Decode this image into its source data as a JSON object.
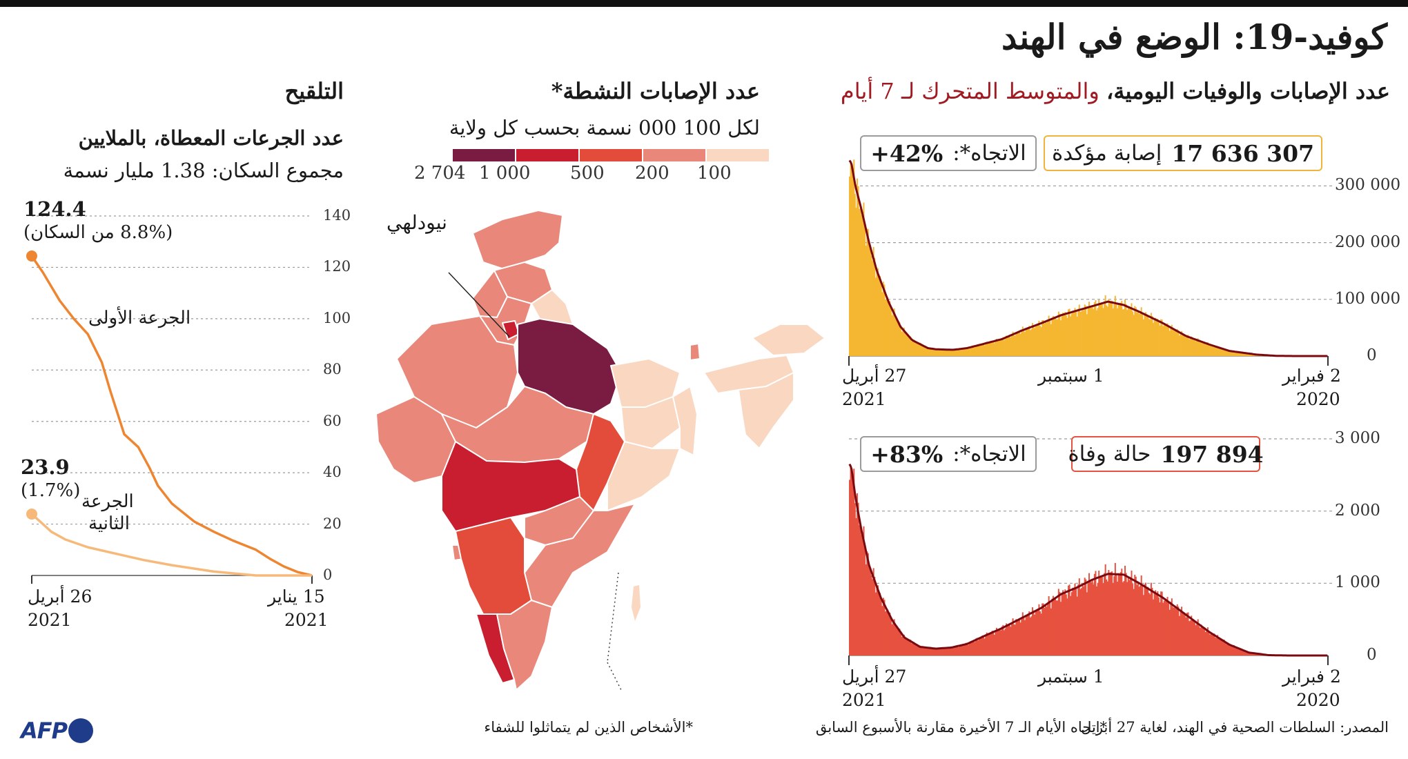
{
  "title": "كوفيد-19: الوضع في الهند",
  "colors": {
    "cases": "#f5b731",
    "deaths": "#e6523f",
    "avg": "#7a0a10",
    "dose1": "#ee8530",
    "dose2": "#f7b97a",
    "pos": "#c81e2f"
  },
  "daily": {
    "heading": "عدد الإصابات والوفيات اليومية،",
    "heading_avg": " والمتوسط المتحرك لـ 7 أيام",
    "cases_total": "17 636 307",
    "cases_label": "إصابة مؤكدة",
    "cases_trend_label": "الاتجاه*:",
    "cases_trend": "+42%",
    "deaths_total": "197 894",
    "deaths_label": "حالة وفاة",
    "deaths_trend_label": "الاتجاه*:",
    "deaths_trend": "+83%",
    "x_left": "27 أبريل",
    "x_left_year": "2021",
    "x_mid": "1 سبتمبر",
    "x_right": "2 فبراير",
    "x_right_year": "2020"
  },
  "map": {
    "heading": "عدد الإصابات النشطة*",
    "sub": "لكل 100 000 نسمة بحسب كل ولاية",
    "legend": [
      "2 704",
      "1 000",
      "500",
      "200",
      "100"
    ],
    "legend_colors": [
      "#7a1b42",
      "#c81e2f",
      "#e34b3a",
      "#e8877a",
      "#fad7c0"
    ],
    "label_delhi": "نيودلهي",
    "footnote": "*الأشخاص الذين لم يتماثلوا للشفاء"
  },
  "vacc": {
    "heading": "التلقيح",
    "sub1": "عدد الجرعات المعطاة، بالملايين",
    "sub2": "مجموع السكان: 1.38 مليار نسمة",
    "dose1_value": "124.4",
    "dose1_pct": "(8.8% من السكان)",
    "dose1_label": "الجرعة الأولى",
    "dose2_value": "23.9",
    "dose2_pct": "(1.7%)",
    "dose2_label_a": "الجرعة",
    "dose2_label_b": "الثانية",
    "x_left": "26 أبريل",
    "x_left_year": "2021",
    "x_right": "15 يناير",
    "x_right_year": "2021"
  },
  "source": "المصدر: السلطات الصحية في الهند، لغاية 27 أبريل",
  "trend_note": "*اتجاه الأيام الـ 7 الأخيرة مقارنة بالأسبوع السابق",
  "brand": "AFP",
  "chart_data": [
    {
      "type": "bar",
      "title": "عدد الإصابات والوفيات اليومية",
      "series_label": "إصابة مؤكدة",
      "x_order": "right-to-left",
      "x": [
        "2 فبراير 2020",
        "1 سبتمبر",
        "27 أبريل 2021"
      ],
      "y_ticks": [
        0,
        100000,
        200000,
        300000
      ],
      "ylim": [
        0,
        320000
      ],
      "knots": [
        [
          0,
          0
        ],
        [
          0.08,
          0
        ],
        [
          0.13,
          300
        ],
        [
          0.18,
          2500
        ],
        [
          0.25,
          9000
        ],
        [
          0.3,
          20000
        ],
        [
          0.36,
          35000
        ],
        [
          0.42,
          58000
        ],
        [
          0.48,
          78000
        ],
        [
          0.52,
          90000
        ],
        [
          0.56,
          96000
        ],
        [
          0.6,
          88000
        ],
        [
          0.64,
          80000
        ],
        [
          0.68,
          72000
        ],
        [
          0.73,
          58000
        ],
        [
          0.78,
          45000
        ],
        [
          0.83,
          30000
        ],
        [
          0.88,
          21000
        ],
        [
          0.92,
          14000
        ],
        [
          0.955,
          11000
        ],
        [
          0.98,
          11500
        ],
        [
          1,
          12000
        ],
        [
          1.02,
          14000
        ],
        [
          1.06,
          28000
        ],
        [
          1.09,
          52000
        ],
        [
          1.12,
          95000
        ],
        [
          1.15,
          150000
        ],
        [
          1.17,
          200000
        ],
        [
          1.19,
          260000
        ],
        [
          1.205,
          300000
        ],
        [
          1.215,
          340000
        ],
        [
          1.22,
          345000
        ]
      ]
    },
    {
      "type": "bar",
      "series_label": "حالة وفاة",
      "x_order": "right-to-left",
      "y_ticks": [
        0,
        1000,
        2000,
        3000
      ],
      "ylim": [
        0,
        3000
      ],
      "knots": [
        [
          0,
          0
        ],
        [
          0.1,
          0
        ],
        [
          0.15,
          5
        ],
        [
          0.2,
          40
        ],
        [
          0.25,
          150
        ],
        [
          0.3,
          320
        ],
        [
          0.36,
          560
        ],
        [
          0.42,
          800
        ],
        [
          0.48,
          1000
        ],
        [
          0.52,
          1120
        ],
        [
          0.56,
          1130
        ],
        [
          0.6,
          1050
        ],
        [
          0.64,
          940
        ],
        [
          0.68,
          850
        ],
        [
          0.73,
          660
        ],
        [
          0.78,
          520
        ],
        [
          0.83,
          380
        ],
        [
          0.88,
          260
        ],
        [
          0.92,
          160
        ],
        [
          0.96,
          110
        ],
        [
          1,
          95
        ],
        [
          1.04,
          120
        ],
        [
          1.08,
          250
        ],
        [
          1.11,
          480
        ],
        [
          1.14,
          800
        ],
        [
          1.17,
          1250
        ],
        [
          1.19,
          1750
        ],
        [
          1.205,
          2200
        ],
        [
          1.215,
          2600
        ],
        [
          1.22,
          2650
        ]
      ]
    },
    {
      "type": "line",
      "title": "التلقيح",
      "ylabel": "عدد الجرعات المعطاة، بالملايين",
      "x": [
        "15 يناير 2021",
        "26 أبريل 2021"
      ],
      "x_order": "right-to-left",
      "y_ticks": [
        0,
        20,
        40,
        60,
        80,
        100,
        120,
        140
      ],
      "ylim": [
        0,
        140
      ],
      "series": [
        {
          "name": "الجرعة الأولى",
          "points": [
            [
              0,
              0
            ],
            [
              0.05,
              1.3
            ],
            [
              0.1,
              3.5
            ],
            [
              0.15,
              6.5
            ],
            [
              0.2,
              10
            ],
            [
              0.28,
              13.5
            ],
            [
              0.35,
              17
            ],
            [
              0.42,
              21
            ],
            [
              0.5,
              28
            ],
            [
              0.55,
              35
            ],
            [
              0.58,
              42
            ],
            [
              0.62,
              50
            ],
            [
              0.67,
              55
            ],
            [
              0.72,
              72
            ],
            [
              0.75,
              83
            ],
            [
              0.8,
              94
            ],
            [
              0.85,
              100
            ],
            [
              0.9,
              107
            ],
            [
              0.96,
              118
            ],
            [
              1,
              124.4
            ]
          ]
        },
        {
          "name": "الجرعة الثانية",
          "points": [
            [
              0,
              0
            ],
            [
              0.2,
              0
            ],
            [
              0.35,
              1.5
            ],
            [
              0.5,
              4
            ],
            [
              0.6,
              6
            ],
            [
              0.7,
              8.5
            ],
            [
              0.8,
              11
            ],
            [
              0.88,
              14
            ],
            [
              0.93,
              17
            ],
            [
              0.97,
              21
            ],
            [
              1,
              23.9
            ]
          ]
        }
      ]
    }
  ]
}
